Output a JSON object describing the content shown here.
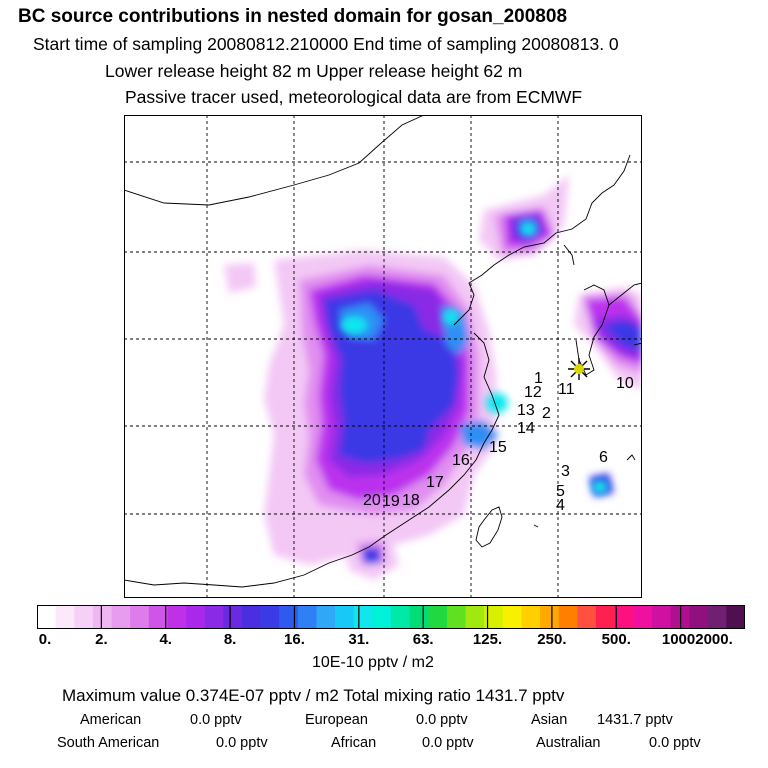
{
  "header": {
    "title": "BC  source contributions in nested domain for gosan_200808",
    "line1": "Start time of sampling 20080812.210000     End time of sampling 20080813.     0",
    "line2": "Lower release height   82 m           Upper release height   62 m",
    "line3": "Passive tracer used, meteorological data are from ECMWF"
  },
  "map": {
    "receptor_icon": "star-marker-icon",
    "site_labels": [
      "1",
      "2",
      "3",
      "4",
      "5",
      "6",
      "10",
      "11",
      "12",
      "13",
      "14",
      "15",
      "16",
      "17",
      "18",
      "19",
      "20"
    ],
    "colors": {
      "light": "#f3c8f5",
      "pink": "#e08ef0",
      "purple": "#bb33ee",
      "violet": "#8a2ae6",
      "blue": "#3b38e6",
      "azure": "#2f8ff5",
      "cyan": "#10e8ee",
      "star": "#d8d800"
    }
  },
  "colorbar": {
    "colors": [
      "#ffffff",
      "#fbe8fb",
      "#f6d0f7",
      "#f0b6f3",
      "#e89cf0",
      "#de7ceb",
      "#cf55e8",
      "#bf30e8",
      "#a928ea",
      "#8b2ae6",
      "#6a2ae2",
      "#4b2ee0",
      "#3a3ae6",
      "#2f5af0",
      "#2f80f5",
      "#2fa8f8",
      "#18c8f6",
      "#10e6ec",
      "#00f0d8",
      "#00e8a8",
      "#00dc78",
      "#20d840",
      "#60e020",
      "#a0e810",
      "#d8f000",
      "#f8f000",
      "#ffd000",
      "#ffa800",
      "#ff8000",
      "#ff5040",
      "#ff2050",
      "#ff1080",
      "#f010a0",
      "#d010a0",
      "#b01090",
      "#901080",
      "#702070",
      "#501050"
    ],
    "tick_labels": [
      "0.",
      "2.",
      "4.",
      "8.",
      "16.",
      "31.",
      "63.",
      "125.",
      "250.",
      "500.",
      "1000.",
      "2000."
    ]
  },
  "legend": {
    "units": "10E-10 pptv / m2",
    "max_line": "Maximum value  0.374E-07 pptv / m2     Total mixing ratio     1431.7 pptv",
    "regions": [
      {
        "name": "American",
        "value": "0.0 pptv"
      },
      {
        "name": "European",
        "value": "0.0 pptv"
      },
      {
        "name": "Asian",
        "value": "1431.7 pptv"
      },
      {
        "name": "South American",
        "value": "0.0 pptv"
      },
      {
        "name": "African",
        "value": "0.0 pptv"
      },
      {
        "name": "Australian",
        "value": "0.0 pptv"
      }
    ]
  }
}
